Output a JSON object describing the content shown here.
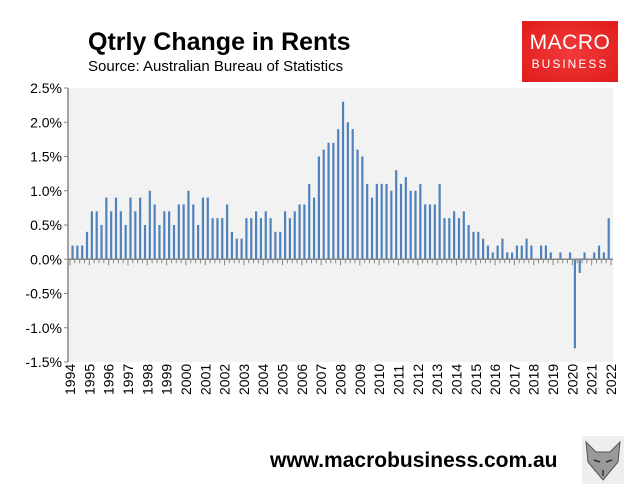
{
  "chart_data": {
    "type": "bar",
    "title": "Qtrly Change in Rents",
    "subtitle": "Source: Australian Bureau of Statistics",
    "ylim": [
      -1.5,
      2.5
    ],
    "yticks": [
      2.5,
      2.0,
      1.5,
      1.0,
      0.5,
      0.0,
      -0.5,
      -1.0,
      -1.5
    ],
    "ytick_labels": [
      "2.5%",
      "2.0%",
      "1.5%",
      "1.0%",
      "0.5%",
      "0.0%",
      "-0.5%",
      "-1.0%",
      "-1.5%"
    ],
    "xtick_labels": [
      "1994",
      "1995",
      "1996",
      "1997",
      "1998",
      "1999",
      "2000",
      "2001",
      "2002",
      "2003",
      "2004",
      "2005",
      "2006",
      "2007",
      "2008",
      "2009",
      "2010",
      "2011",
      "2012",
      "2013",
      "2014",
      "2015",
      "2016",
      "2017",
      "2018",
      "2019",
      "2020",
      "2021",
      "2022"
    ],
    "start": "1994 Q1",
    "frequency": "quarterly",
    "values": [
      0.2,
      0.2,
      0.2,
      0.4,
      0.7,
      0.7,
      0.5,
      0.9,
      0.7,
      0.9,
      0.7,
      0.5,
      0.9,
      0.7,
      0.9,
      0.5,
      1.0,
      0.8,
      0.5,
      0.7,
      0.7,
      0.5,
      0.8,
      0.8,
      1.0,
      0.8,
      0.5,
      0.9,
      0.9,
      0.6,
      0.6,
      0.6,
      0.8,
      0.4,
      0.3,
      0.3,
      0.6,
      0.6,
      0.7,
      0.6,
      0.7,
      0.6,
      0.4,
      0.4,
      0.7,
      0.6,
      0.7,
      0.8,
      0.8,
      1.1,
      0.9,
      1.5,
      1.6,
      1.7,
      1.7,
      1.9,
      2.3,
      2.0,
      1.9,
      1.6,
      1.5,
      1.1,
      0.9,
      1.1,
      1.1,
      1.1,
      1.0,
      1.3,
      1.1,
      1.2,
      1.0,
      1.0,
      1.1,
      0.8,
      0.8,
      0.8,
      1.1,
      0.6,
      0.6,
      0.7,
      0.6,
      0.7,
      0.5,
      0.4,
      0.4,
      0.3,
      0.2,
      0.1,
      0.2,
      0.3,
      0.1,
      0.1,
      0.2,
      0.2,
      0.3,
      0.2,
      0.0,
      0.2,
      0.2,
      0.1,
      0.0,
      0.1,
      0.0,
      0.1,
      -1.3,
      -0.2,
      0.1,
      0.0,
      0.1,
      0.2,
      0.1,
      0.6
    ],
    "xlabel": "",
    "ylabel": "",
    "grid": false,
    "bar_color": "#4f81bd"
  },
  "logo": {
    "line1": "MACRO",
    "line2": "BUSINESS"
  },
  "footer": {
    "url": "www.macrobusiness.com.au"
  }
}
